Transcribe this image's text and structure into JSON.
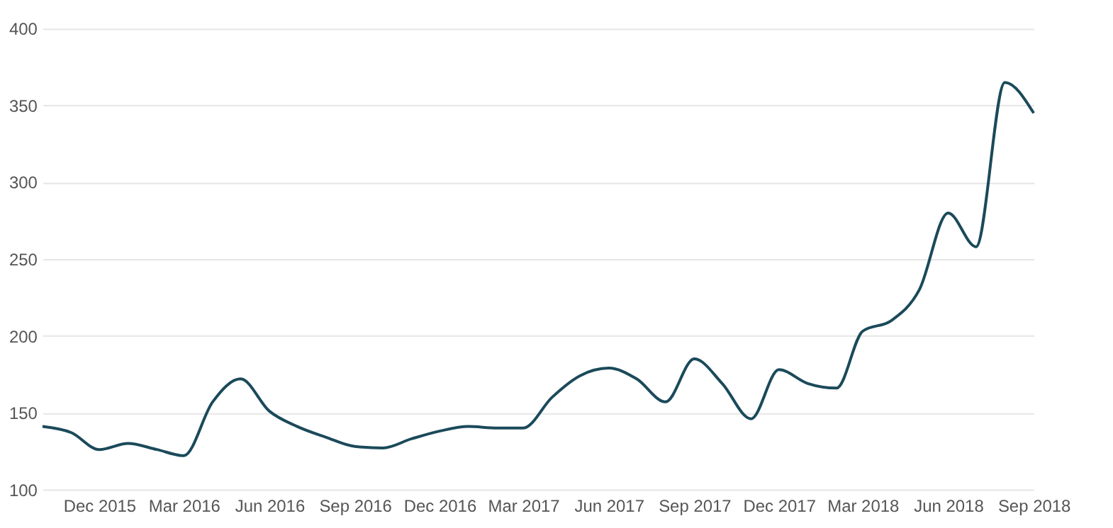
{
  "chart_data": {
    "type": "line",
    "x": [
      "2015-10",
      "2015-11",
      "2015-12",
      "2016-01",
      "2016-02",
      "2016-03",
      "2016-04",
      "2016-05",
      "2016-06",
      "2016-07",
      "2016-08",
      "2016-09",
      "2016-10",
      "2016-11",
      "2016-12",
      "2017-01",
      "2017-02",
      "2017-03",
      "2017-04",
      "2017-05",
      "2017-06",
      "2017-07",
      "2017-08",
      "2017-09",
      "2017-10",
      "2017-11",
      "2017-12",
      "2018-01",
      "2018-02",
      "2018-03",
      "2018-04",
      "2018-05",
      "2018-06",
      "2018-07",
      "2018-08",
      "2018-09"
    ],
    "series": [
      {
        "color": "#1b4a5a",
        "values": [
          141,
          137,
          126,
          130,
          126,
          122,
          157,
          172,
          151,
          141,
          134,
          128,
          127,
          133,
          138,
          141,
          140,
          140,
          160,
          174,
          179,
          172,
          157,
          185,
          169,
          146,
          178,
          169,
          166,
          203,
          210,
          230,
          280,
          258,
          365,
          345
        ]
      }
    ],
    "xlim": [
      "2015-10",
      "2018-09"
    ],
    "xticks": [
      {
        "value": "2015-12",
        "label": "Dec 2015"
      },
      {
        "value": "2016-03",
        "label": "Mar 2016"
      },
      {
        "value": "2016-06",
        "label": "Jun 2016"
      },
      {
        "value": "2016-09",
        "label": "Sep 2016"
      },
      {
        "value": "2016-12",
        "label": "Dec 2016"
      },
      {
        "value": "2017-03",
        "label": "Mar 2017"
      },
      {
        "value": "2017-06",
        "label": "Jun 2017"
      },
      {
        "value": "2017-09",
        "label": "Sep 2017"
      },
      {
        "value": "2017-12",
        "label": "Dec 2017"
      },
      {
        "value": "2018-03",
        "label": "Mar 2018"
      },
      {
        "value": "2018-06",
        "label": "Jun 2018"
      },
      {
        "value": "2018-09",
        "label": "Sep 2018"
      }
    ],
    "ylim": [
      100,
      400
    ],
    "yticks": [
      100,
      150,
      200,
      250,
      300,
      350,
      400
    ],
    "grid": "y",
    "line_style": "solid",
    "marker": "none"
  }
}
